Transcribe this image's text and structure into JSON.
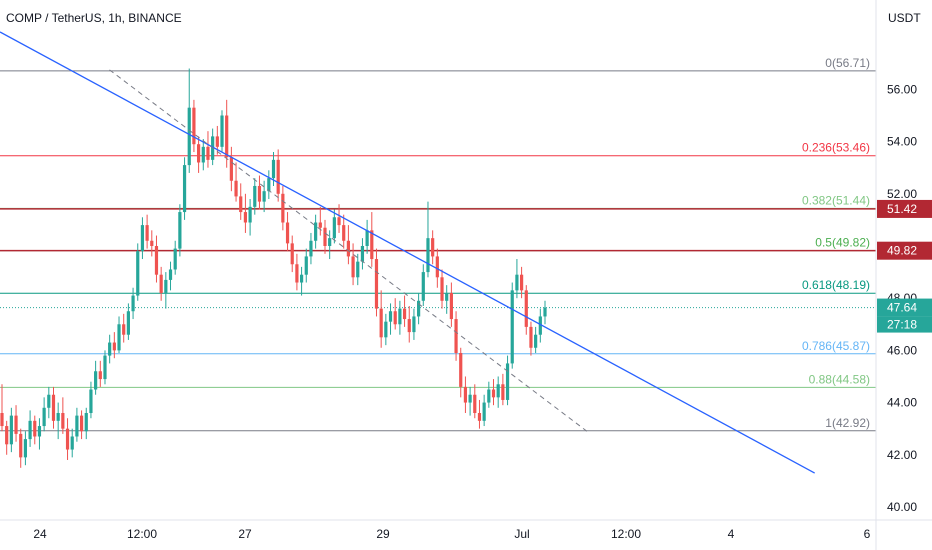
{
  "chart_data": {
    "type": "candlestick",
    "title": "COMP / TetherUS, 1h, BINANCE",
    "currency_label": "USDT",
    "ylim": [
      39.5,
      58.2
    ],
    "y_ticks": [
      "56.00",
      "54.00",
      "52.00",
      "48.00",
      "46.00",
      "44.00",
      "42.00",
      "40.00"
    ],
    "x_ticks": [
      "24",
      "12:00",
      "27",
      "29",
      "Jul",
      "12:00",
      "4",
      "6"
    ],
    "fib_levels": [
      {
        "label": "0(56.71)",
        "value": 56.71,
        "color": "#787b86"
      },
      {
        "label": "0.236(53.46)",
        "value": 53.46,
        "color": "#f23645"
      },
      {
        "label": "0.382(51.44)",
        "value": 51.44,
        "color": "#81c784"
      },
      {
        "label": "0.5(49.82)",
        "value": 49.82,
        "color": "#4caf50"
      },
      {
        "label": "0.618(48.19)",
        "value": 48.19,
        "color": "#089981"
      },
      {
        "label": "0.786(45.87)",
        "value": 45.87,
        "color": "#64b5f6"
      },
      {
        "label": "0.88(44.58)",
        "value": 44.58,
        "color": "#81c784"
      },
      {
        "label": "1(42.92)",
        "value": 42.92,
        "color": "#787b86"
      }
    ],
    "horizontal_lines": [
      {
        "value": 51.42,
        "color": "#b22833"
      },
      {
        "value": 49.82,
        "color": "#b22833"
      }
    ],
    "price_tags": [
      {
        "text": "51.42",
        "value": 51.42,
        "color": "#b22833"
      },
      {
        "text": "49.82",
        "value": 49.82,
        "color": "#b22833"
      },
      {
        "text": "47.64",
        "value": 47.64,
        "color": "#26a69a"
      }
    ],
    "countdown": "27:18",
    "last_price": 47.64,
    "trendlines": [
      {
        "style": "solid",
        "color": "#2962ff",
        "from": [
          0,
          58.2
        ],
        "to": [
          0.93,
          41.3
        ]
      },
      {
        "style": "dashed",
        "color": "#787b86",
        "from": [
          0.125,
          56.75
        ],
        "to": [
          0.67,
          42.9
        ]
      }
    ],
    "candles_ohlc": [
      [
        43.6,
        44.7,
        42.9,
        43.1
      ],
      [
        43.1,
        43.3,
        42.0,
        42.4
      ],
      [
        42.4,
        43.8,
        42.1,
        43.5
      ],
      [
        43.5,
        43.9,
        42.5,
        42.8
      ],
      [
        42.8,
        43.0,
        41.5,
        41.9
      ],
      [
        41.9,
        42.9,
        41.6,
        42.6
      ],
      [
        42.6,
        43.7,
        42.3,
        43.3
      ],
      [
        43.3,
        43.5,
        42.4,
        42.7
      ],
      [
        42.7,
        43.4,
        42.2,
        43.1
      ],
      [
        43.1,
        44.2,
        42.9,
        43.8
      ],
      [
        43.8,
        44.6,
        43.4,
        44.3
      ],
      [
        44.3,
        44.6,
        43.0,
        43.3
      ],
      [
        43.3,
        44.0,
        42.6,
        43.6
      ],
      [
        43.6,
        44.2,
        42.8,
        43.0
      ],
      [
        43.0,
        43.4,
        41.8,
        42.2
      ],
      [
        42.2,
        43.0,
        41.9,
        42.7
      ],
      [
        42.7,
        43.8,
        42.5,
        43.5
      ],
      [
        43.5,
        43.7,
        42.6,
        42.9
      ],
      [
        42.9,
        43.8,
        42.6,
        43.6
      ],
      [
        43.6,
        44.8,
        43.4,
        44.5
      ],
      [
        44.5,
        45.6,
        44.3,
        45.2
      ],
      [
        45.2,
        45.6,
        44.6,
        44.9
      ],
      [
        44.9,
        46.0,
        44.7,
        45.8
      ],
      [
        45.8,
        46.6,
        45.5,
        46.3
      ],
      [
        46.3,
        46.7,
        45.7,
        46.0
      ],
      [
        46.0,
        47.3,
        45.9,
        47.0
      ],
      [
        47.0,
        47.4,
        46.3,
        46.6
      ],
      [
        46.6,
        47.8,
        46.4,
        47.5
      ],
      [
        47.5,
        48.4,
        47.2,
        48.1
      ],
      [
        48.1,
        50.1,
        47.9,
        49.8
      ],
      [
        49.8,
        51.1,
        49.5,
        50.8
      ],
      [
        50.8,
        51.2,
        49.9,
        50.2
      ],
      [
        50.2,
        50.6,
        49.6,
        50.0
      ],
      [
        50.0,
        50.4,
        48.6,
        48.9
      ],
      [
        48.9,
        49.2,
        47.9,
        48.2
      ],
      [
        48.2,
        49.0,
        47.6,
        48.7
      ],
      [
        48.7,
        49.4,
        48.3,
        49.1
      ],
      [
        49.1,
        50.2,
        48.9,
        49.9
      ],
      [
        49.9,
        51.6,
        49.6,
        51.3
      ],
      [
        51.3,
        53.4,
        51.0,
        53.1
      ],
      [
        53.1,
        56.8,
        52.8,
        55.3
      ],
      [
        55.3,
        55.6,
        53.6,
        53.9
      ],
      [
        53.9,
        54.2,
        52.8,
        53.2
      ],
      [
        53.2,
        54.1,
        52.9,
        53.8
      ],
      [
        53.8,
        54.4,
        53.0,
        53.3
      ],
      [
        53.3,
        54.5,
        53.1,
        54.2
      ],
      [
        54.2,
        54.6,
        53.5,
        53.8
      ],
      [
        53.8,
        55.2,
        53.6,
        55.0
      ],
      [
        55.0,
        55.6,
        53.0,
        53.4
      ],
      [
        53.4,
        53.8,
        52.1,
        52.5
      ],
      [
        52.5,
        53.2,
        51.7,
        51.9
      ],
      [
        51.9,
        52.4,
        51.0,
        51.3
      ],
      [
        51.3,
        52.0,
        50.5,
        50.9
      ],
      [
        50.9,
        51.8,
        50.4,
        51.5
      ],
      [
        51.5,
        52.6,
        51.2,
        52.3
      ],
      [
        52.3,
        52.7,
        51.4,
        51.7
      ],
      [
        51.7,
        52.5,
        51.3,
        52.1
      ],
      [
        52.1,
        52.9,
        51.8,
        52.6
      ],
      [
        52.6,
        53.6,
        52.3,
        53.3
      ],
      [
        53.3,
        53.7,
        51.7,
        52.0
      ],
      [
        52.0,
        52.3,
        50.6,
        50.9
      ],
      [
        50.9,
        51.3,
        49.8,
        50.1
      ],
      [
        50.1,
        50.4,
        49.0,
        49.3
      ],
      [
        49.3,
        49.7,
        48.3,
        48.6
      ],
      [
        48.6,
        49.2,
        48.1,
        48.9
      ],
      [
        48.9,
        49.9,
        48.6,
        49.6
      ],
      [
        49.6,
        50.5,
        49.3,
        50.2
      ],
      [
        50.2,
        51.2,
        49.9,
        50.9
      ],
      [
        50.9,
        51.5,
        50.4,
        50.7
      ],
      [
        50.7,
        51.0,
        49.7,
        50.0
      ],
      [
        50.0,
        50.6,
        49.5,
        50.3
      ],
      [
        50.3,
        51.4,
        50.1,
        51.1
      ],
      [
        51.1,
        51.6,
        50.5,
        50.8
      ],
      [
        50.8,
        51.2,
        49.9,
        50.2
      ],
      [
        50.2,
        50.8,
        49.3,
        49.6
      ],
      [
        49.6,
        50.1,
        48.5,
        48.8
      ],
      [
        48.8,
        49.7,
        48.5,
        49.4
      ],
      [
        49.4,
        50.3,
        49.1,
        50.0
      ],
      [
        50.0,
        51.0,
        49.7,
        50.6
      ],
      [
        50.6,
        51.3,
        49.2,
        49.5
      ],
      [
        49.5,
        49.9,
        47.3,
        47.6
      ],
      [
        47.6,
        48.3,
        46.1,
        46.5
      ],
      [
        46.5,
        47.4,
        46.2,
        47.1
      ],
      [
        47.1,
        47.8,
        46.6,
        47.5
      ],
      [
        47.5,
        48.0,
        46.8,
        47.0
      ],
      [
        47.0,
        47.9,
        46.6,
        47.6
      ],
      [
        47.6,
        48.1,
        46.9,
        47.2
      ],
      [
        47.2,
        47.7,
        46.3,
        46.7
      ],
      [
        46.7,
        47.6,
        46.4,
        47.3
      ],
      [
        47.3,
        48.2,
        47.0,
        47.9
      ],
      [
        47.9,
        49.3,
        47.7,
        49.0
      ],
      [
        49.0,
        51.7,
        48.8,
        50.3
      ],
      [
        50.3,
        50.6,
        49.3,
        49.6
      ],
      [
        49.6,
        49.9,
        48.4,
        48.8
      ],
      [
        48.8,
        49.1,
        47.6,
        47.9
      ],
      [
        47.9,
        48.5,
        47.4,
        48.2
      ],
      [
        48.2,
        48.6,
        46.9,
        47.2
      ],
      [
        47.2,
        47.5,
        45.6,
        45.9
      ],
      [
        45.9,
        46.1,
        44.2,
        44.6
      ],
      [
        44.6,
        45.0,
        43.6,
        44.0
      ],
      [
        44.0,
        44.6,
        43.5,
        44.3
      ],
      [
        44.3,
        44.7,
        43.4,
        43.6
      ],
      [
        43.6,
        44.1,
        43.0,
        43.3
      ],
      [
        43.3,
        44.3,
        43.1,
        44.0
      ],
      [
        44.0,
        44.8,
        43.8,
        44.5
      ],
      [
        44.5,
        44.9,
        43.9,
        44.2
      ],
      [
        44.2,
        45.0,
        43.8,
        44.7
      ],
      [
        44.7,
        45.1,
        43.9,
        44.1
      ],
      [
        44.1,
        45.8,
        43.9,
        45.5
      ],
      [
        45.5,
        48.6,
        45.3,
        48.3
      ],
      [
        48.3,
        49.5,
        48.0,
        48.9
      ],
      [
        48.9,
        49.2,
        48.0,
        48.3
      ],
      [
        48.3,
        48.5,
        46.6,
        46.9
      ],
      [
        46.9,
        47.1,
        45.8,
        46.1
      ],
      [
        46.1,
        46.9,
        45.9,
        46.6
      ],
      [
        46.6,
        47.6,
        46.3,
        47.3
      ],
      [
        47.3,
        47.9,
        47.0,
        47.64
      ]
    ]
  }
}
